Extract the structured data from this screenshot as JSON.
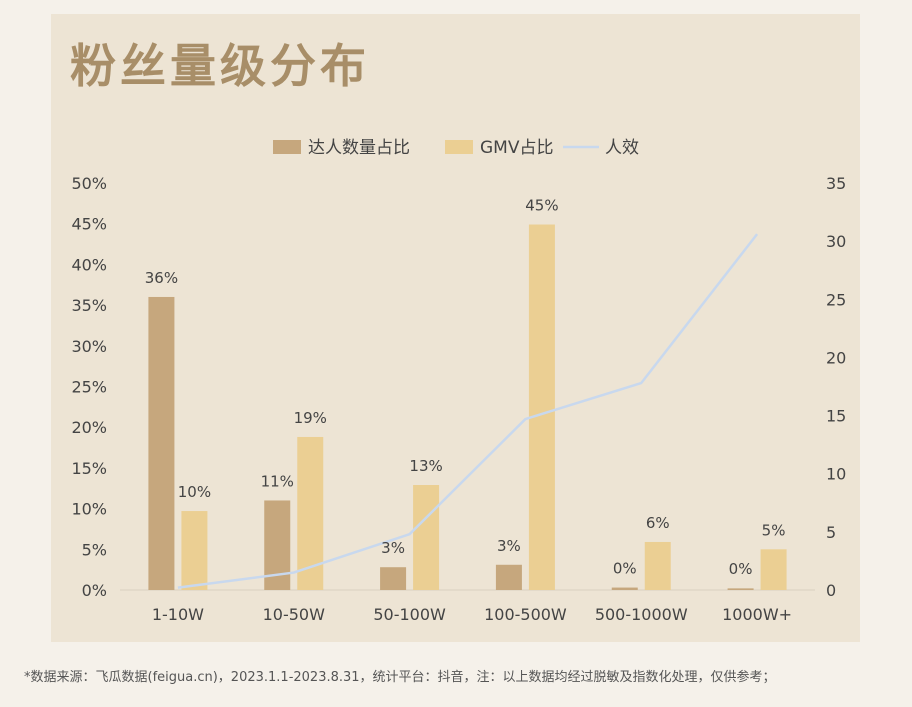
{
  "title": "粉丝量级分布",
  "footer": "*数据来源：飞瓜数据(feigua.cn)，2023.1.1-2023.8.31，统计平台：抖音，注：以上数据均经过脱敏及指数化处理，仅供参考；",
  "colors": {
    "panel": "#ede4d4",
    "bar1": "#c6a77d",
    "bar2": "#ebcf93",
    "line": "#c8d8ee",
    "title": "#a88e68",
    "text": "#444444"
  },
  "chart_data": {
    "type": "bar",
    "categories": [
      "1-10W",
      "10-50W",
      "50-100W",
      "100-500W",
      "500-1000W",
      "1000W+"
    ],
    "series": [
      {
        "name": "达人数量占比",
        "type": "bar",
        "axis": "left",
        "values": [
          36,
          11,
          2.8,
          3.1,
          0.3,
          0.2
        ],
        "labels": [
          "36%",
          "11%",
          "3%",
          "3%",
          "0%",
          "0%"
        ]
      },
      {
        "name": "GMV占比",
        "type": "bar",
        "axis": "left",
        "values": [
          9.7,
          18.8,
          12.9,
          44.9,
          5.9,
          5.0
        ],
        "labels": [
          "10%",
          "19%",
          "13%",
          "45%",
          "6%",
          "5%"
        ]
      },
      {
        "name": "人效",
        "type": "line",
        "axis": "right",
        "values": [
          0.2,
          1.5,
          4.8,
          14.7,
          17.8,
          30.6
        ]
      }
    ],
    "y_left": {
      "range": [
        0,
        50
      ],
      "ticks": [
        "0%",
        "5%",
        "10%",
        "15%",
        "20%",
        "25%",
        "30%",
        "35%",
        "40%",
        "45%",
        "50%"
      ]
    },
    "y_right": {
      "range": [
        0,
        35
      ],
      "ticks": [
        "0",
        "5",
        "10",
        "15",
        "20",
        "25",
        "30",
        "35"
      ]
    },
    "legend_position": "top-center",
    "grid": false
  }
}
